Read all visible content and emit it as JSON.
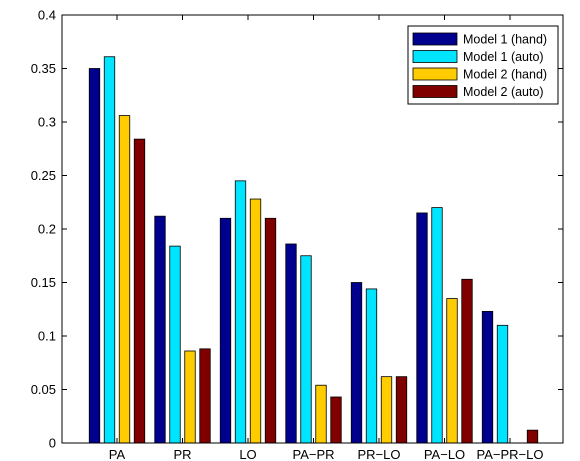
{
  "chart_data": {
    "type": "bar",
    "categories": [
      "PA",
      "PR",
      "LO",
      "PA−PR",
      "PR−LO",
      "PA−LO",
      "PA−PR−LO"
    ],
    "series": [
      {
        "name": "Model 1 (hand)",
        "color": "#00008f",
        "values": [
          0.35,
          0.212,
          0.21,
          0.186,
          0.15,
          0.215,
          0.123
        ]
      },
      {
        "name": "Model 1 (auto)",
        "color": "#00e5ff",
        "values": [
          0.361,
          0.184,
          0.245,
          0.175,
          0.144,
          0.22,
          0.11
        ]
      },
      {
        "name": "Model 2 (hand)",
        "color": "#ffcc00",
        "values": [
          0.306,
          0.086,
          0.228,
          0.054,
          0.062,
          0.135,
          0.0
        ]
      },
      {
        "name": "Model 2 (auto)",
        "color": "#800000",
        "values": [
          0.284,
          0.088,
          0.21,
          0.043,
          0.062,
          0.153,
          0.012
        ]
      }
    ],
    "yticks": [
      "0",
      "0.05",
      "0.1",
      "0.15",
      "0.2",
      "0.25",
      "0.3",
      "0.35",
      "0.4"
    ],
    "ylim": [
      0,
      0.4
    ],
    "title": "",
    "xlabel": "",
    "ylabel": "",
    "grid": false,
    "legend_position": "top-right"
  }
}
